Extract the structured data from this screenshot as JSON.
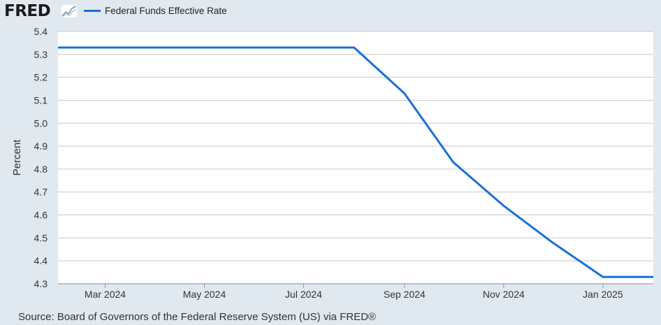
{
  "brand": {
    "logo_text": "FRED",
    "logo_icon": "line-chart-icon"
  },
  "colors": {
    "series": "#1a6fd9",
    "plot_bg": "#ffffff",
    "page_bg": "#e1e9f0",
    "grid": "#c8c8c8"
  },
  "source": "Source: Board of Governors of the Federal Reserve System (US) via FRED®",
  "chart_data": {
    "type": "line",
    "title": "",
    "xlabel": "",
    "ylabel": "Percent",
    "ylim": [
      4.3,
      5.4
    ],
    "yticks": [
      "4.3",
      "4.4",
      "4.5",
      "4.6",
      "4.7",
      "4.8",
      "4.9",
      "5.0",
      "5.1",
      "5.2",
      "5.3",
      "5.4"
    ],
    "xlim": [
      "2024-02-01",
      "2025-02-01"
    ],
    "xticks": [
      {
        "label": "Mar 2024",
        "date": "2024-03-01"
      },
      {
        "label": "May 2024",
        "date": "2024-05-01"
      },
      {
        "label": "Jul 2024",
        "date": "2024-07-01"
      },
      {
        "label": "Sep 2024",
        "date": "2024-09-01"
      },
      {
        "label": "Nov 2024",
        "date": "2024-11-01"
      },
      {
        "label": "Jan 2025",
        "date": "2025-01-01"
      }
    ],
    "grid": true,
    "legend": "top-left",
    "series": [
      {
        "name": "Federal Funds Effective Rate",
        "x": [
          "2024-02-01",
          "2024-03-01",
          "2024-04-01",
          "2024-05-01",
          "2024-06-01",
          "2024-07-01",
          "2024-08-01",
          "2024-09-01",
          "2024-10-01",
          "2024-11-01",
          "2024-12-01",
          "2025-01-01",
          "2025-02-01"
        ],
        "values": [
          5.33,
          5.33,
          5.33,
          5.33,
          5.33,
          5.33,
          5.33,
          5.13,
          4.83,
          4.64,
          4.48,
          4.33,
          4.33
        ]
      }
    ]
  }
}
